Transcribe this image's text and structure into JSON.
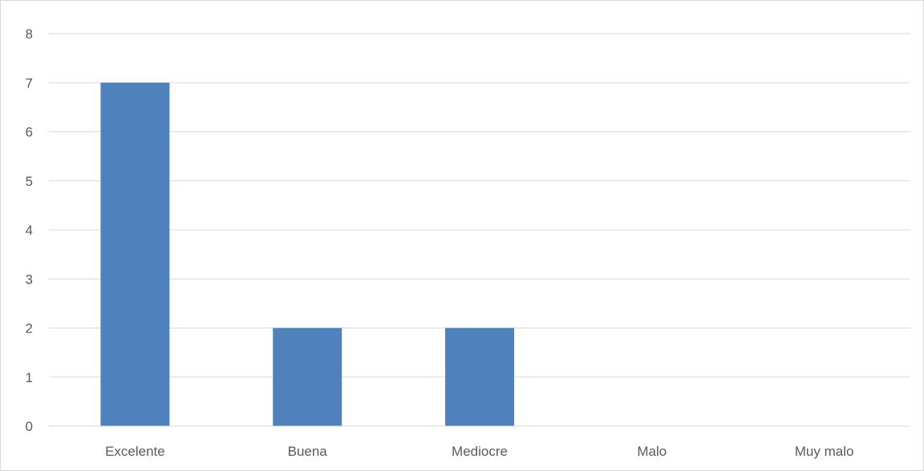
{
  "chart_data": {
    "type": "bar",
    "title": "",
    "xlabel": "",
    "ylabel": "",
    "categories": [
      "Excelente",
      "Buena",
      "Mediocre",
      "Malo",
      "Muy malo"
    ],
    "values": [
      7,
      2,
      2,
      0,
      0
    ],
    "ylim": [
      0,
      8
    ],
    "yticks": [
      "0",
      "1",
      "2",
      "3",
      "4",
      "5",
      "6",
      "7",
      "8"
    ],
    "grid": true,
    "legend": "none",
    "bar_color": "#4f81bd",
    "grid_color": "#d9d9d9",
    "axis_color": "#d9d9d9",
    "label_color": "#595959"
  }
}
